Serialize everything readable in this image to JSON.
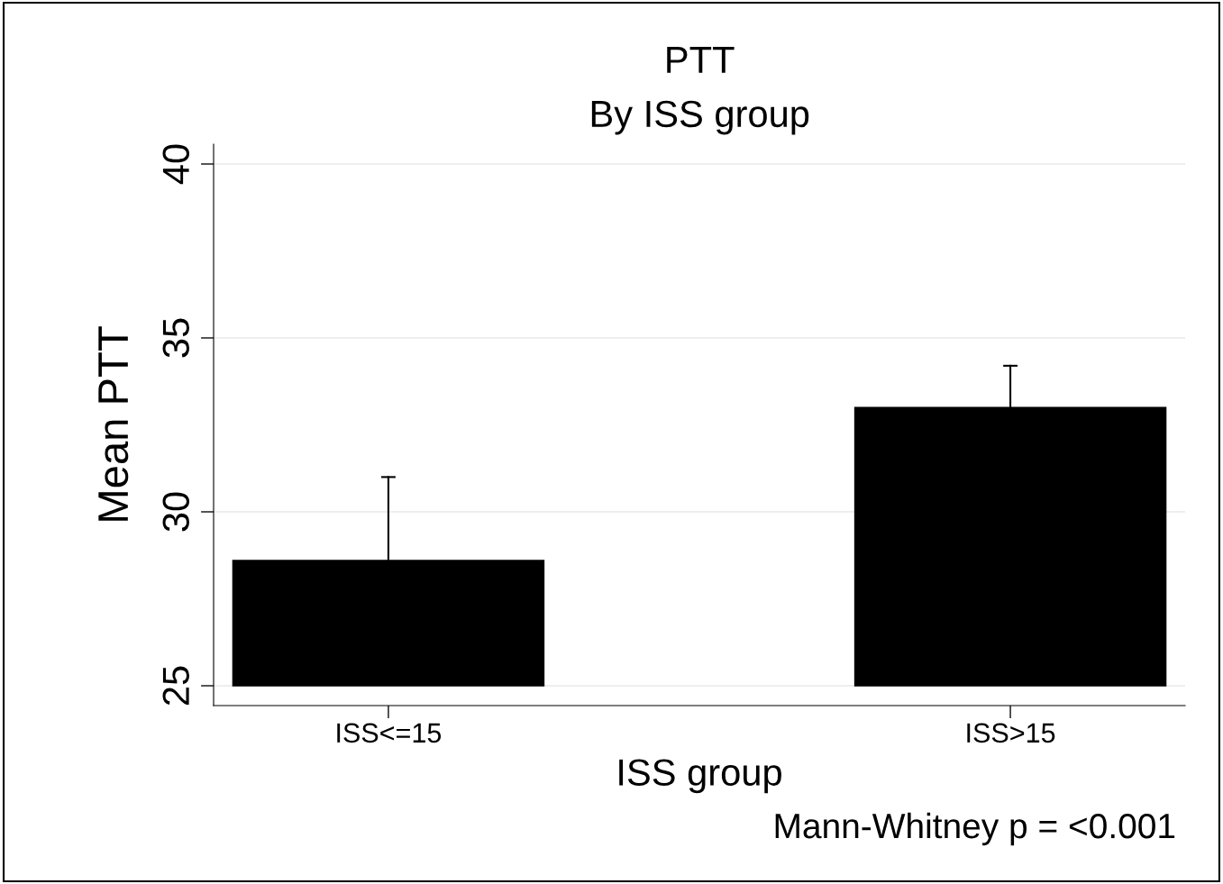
{
  "chart_data": {
    "type": "bar",
    "title": "PTT",
    "subtitle": "By ISS group",
    "xlabel": "ISS group",
    "ylabel": "Mean PTT",
    "categories": [
      "ISS<=15",
      "ISS>15"
    ],
    "base": [
      25,
      25
    ],
    "values": [
      3.6,
      8.0
    ],
    "errors": [
      [
        28.6,
        31.0
      ],
      [
        33.0,
        34.2
      ]
    ],
    "color": "#000000",
    "ylim": [
      24.43,
      40.57
    ],
    "yticks": [
      25,
      30,
      35,
      40
    ],
    "grid": "y",
    "annotations": [
      "Mann-Whitney p = <0.001"
    ]
  }
}
